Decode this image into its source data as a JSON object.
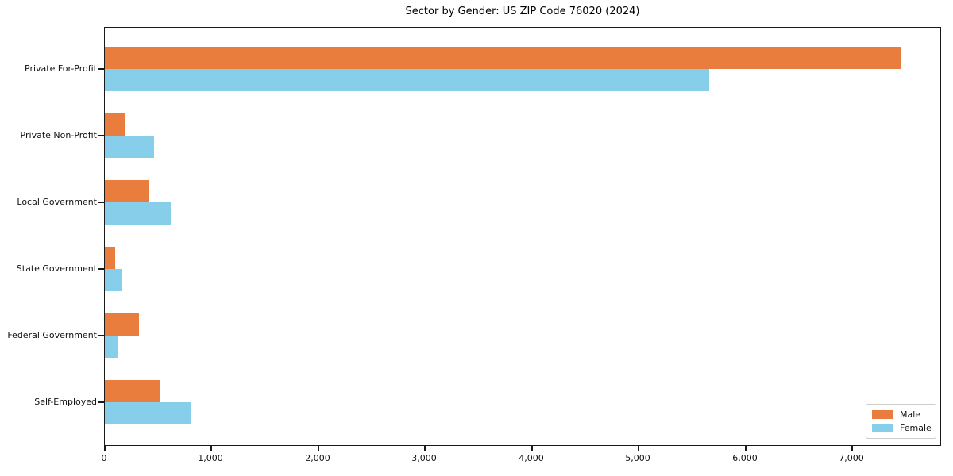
{
  "chart_data": {
    "type": "bar",
    "orientation": "horizontal",
    "title": "Sector by Gender: US ZIP Code 76020 (2024)",
    "categories": [
      "Private For-Profit",
      "Private Non-Profit",
      "Local Government",
      "State Government",
      "Federal Government",
      "Self-Employed"
    ],
    "series": [
      {
        "name": "Male",
        "color": "#e87d3e",
        "values": [
          7460,
          190,
          410,
          97,
          320,
          520
        ]
      },
      {
        "name": "Female",
        "color": "#87ceeb",
        "values": [
          5660,
          460,
          620,
          165,
          125,
          805
        ]
      }
    ],
    "xlabel": "",
    "ylabel": "",
    "xlim": [
      0,
      7840
    ],
    "xticks": [
      0,
      1000,
      2000,
      3000,
      4000,
      5000,
      6000,
      7000
    ],
    "xtick_labels": [
      "0",
      "1,000",
      "2,000",
      "3,000",
      "4,000",
      "5,000",
      "6,000",
      "7,000"
    ],
    "grid": false,
    "legend_position": "lower right",
    "background_color": "#ffffff",
    "spine_color": "#1a1a1a"
  }
}
